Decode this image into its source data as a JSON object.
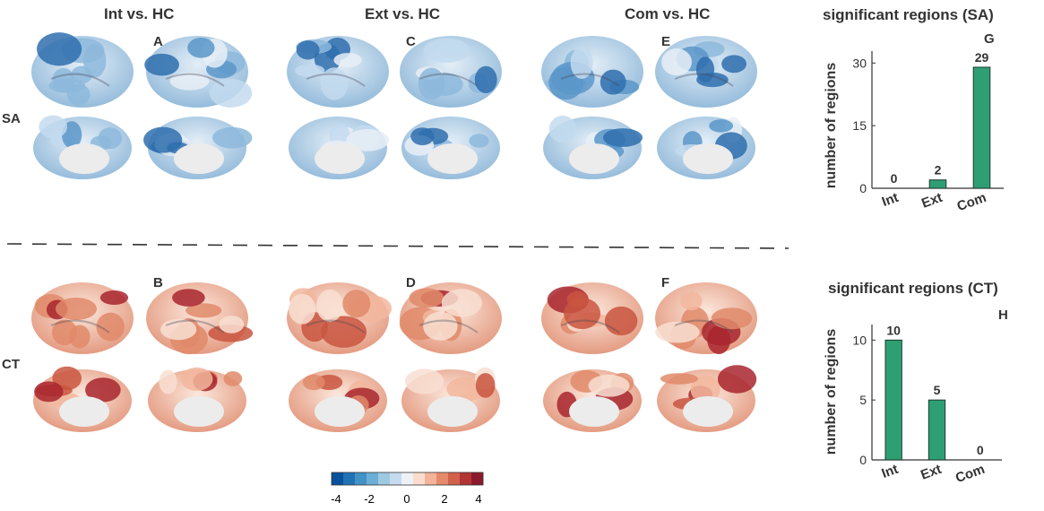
{
  "columns": [
    "Int vs. HC",
    "Ext vs. HC",
    "Com vs. HC"
  ],
  "rows": [
    "SA",
    "CT"
  ],
  "panels": [
    "A",
    "C",
    "E",
    "B",
    "D",
    "F",
    "G",
    "H"
  ],
  "colorbar": {
    "ticks": [
      "-4",
      "-2",
      "0",
      "2",
      "4"
    ],
    "colors": [
      "#08519c",
      "#2171b5",
      "#4292c6",
      "#6baed6",
      "#9ecae1",
      "#c6dbef",
      "#eef2f6",
      "#fbdccd",
      "#f4b399",
      "#e68a6c",
      "#d2604a",
      "#b23434",
      "#8c1a2c"
    ]
  },
  "chart_data": [
    {
      "type": "bar",
      "title": "significant regions (SA)",
      "ylabel": "number of  regions",
      "categories": [
        "Int",
        "Ext",
        "Com"
      ],
      "values": [
        0,
        2,
        29
      ],
      "value_labels": [
        "0",
        "2",
        "29"
      ],
      "yticks": [
        "0",
        "15",
        "30"
      ],
      "ylim": [
        0,
        32
      ],
      "bar_color": "#2e9f73"
    },
    {
      "type": "bar",
      "title": "significant regions (CT)",
      "ylabel": "number of  regions",
      "categories": [
        "Int",
        "Ext",
        "Com"
      ],
      "values": [
        10,
        5,
        0
      ],
      "value_labels": [
        "10",
        "5",
        "0"
      ],
      "yticks": [
        "0",
        "5",
        "10"
      ],
      "ylim": [
        0,
        11
      ],
      "bar_color": "#2e9f73"
    }
  ]
}
